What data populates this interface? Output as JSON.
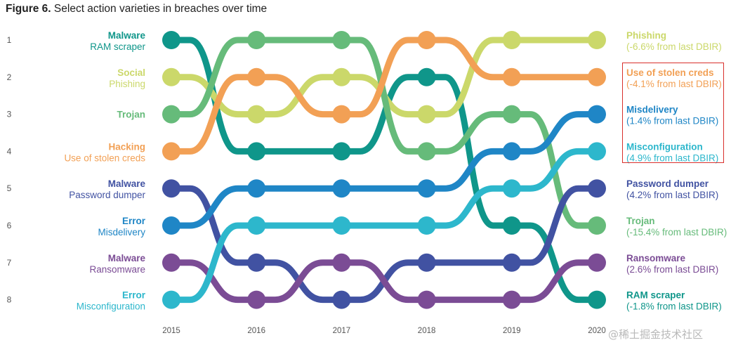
{
  "title": {
    "figure_num": "Figure 6.",
    "text": "Select action varieties in breaches over time"
  },
  "watermark": "@稀土掘金技术社区",
  "chart_data": {
    "type": "bump",
    "title": "Figure 6. Select action varieties in breaches over time",
    "years": [
      "2015",
      "2016",
      "2017",
      "2018",
      "2019",
      "2020"
    ],
    "ranks": [
      "1",
      "2",
      "3",
      "4",
      "5",
      "6",
      "7",
      "8"
    ],
    "series": [
      {
        "key": "ram",
        "color": "#0f968a",
        "start_label": [
          "Malware",
          "RAM scraper"
        ],
        "end_label": [
          "RAM scraper",
          "(-1.8% from last DBIR)"
        ],
        "ranks": [
          1,
          4,
          4,
          2,
          6,
          8
        ]
      },
      {
        "key": "phishing",
        "color": "#cbd86a",
        "start_label": [
          "Social",
          "Phishing"
        ],
        "end_label": [
          "Phishing",
          "(-6.6% from last DBIR)"
        ],
        "ranks": [
          2,
          3,
          2,
          3,
          1,
          1
        ]
      },
      {
        "key": "trojan",
        "color": "#66bb7a",
        "start_label": [
          "Trojan"
        ],
        "end_label": [
          "Trojan",
          "(-15.4% from last DBIR)"
        ],
        "ranks": [
          3,
          1,
          1,
          4,
          3,
          6
        ]
      },
      {
        "key": "stolen",
        "color": "#f2a055",
        "start_label": [
          "Hacking",
          "Use of stolen creds"
        ],
        "end_label": [
          "Use of stolen creds",
          "(-4.1% from last DBIR)"
        ],
        "ranks": [
          4,
          2,
          3,
          1,
          2,
          2
        ]
      },
      {
        "key": "pwdump",
        "color": "#4152a2",
        "start_label": [
          "Malware",
          "Password dumper"
        ],
        "end_label": [
          "Password dumper",
          "(4.2% from last DBIR)"
        ],
        "ranks": [
          5,
          7,
          8,
          7,
          7,
          5
        ]
      },
      {
        "key": "misdelivery",
        "color": "#1f86c6",
        "start_label": [
          "Error",
          "Misdelivery"
        ],
        "end_label": [
          "Misdelivery",
          "(1.4% from last DBIR)"
        ],
        "ranks": [
          6,
          5,
          5,
          5,
          4,
          3
        ]
      },
      {
        "key": "ransomware",
        "color": "#7b4c95",
        "start_label": [
          "Malware",
          "Ransomware"
        ],
        "end_label": [
          "Ransomware",
          "(2.6% from last DBIR)"
        ],
        "ranks": [
          7,
          8,
          7,
          8,
          8,
          7
        ]
      },
      {
        "key": "misconfig",
        "color": "#2db7cc",
        "start_label": [
          "Error",
          "Misconfiguration"
        ],
        "end_label": [
          "Misconfiguration",
          "(4.9% from last DBIR)"
        ],
        "ranks": [
          8,
          6,
          6,
          6,
          5,
          4
        ]
      }
    ],
    "highlighted": [
      "stolen",
      "misdelivery",
      "misconfig"
    ],
    "legend": "none",
    "grid": false
  }
}
